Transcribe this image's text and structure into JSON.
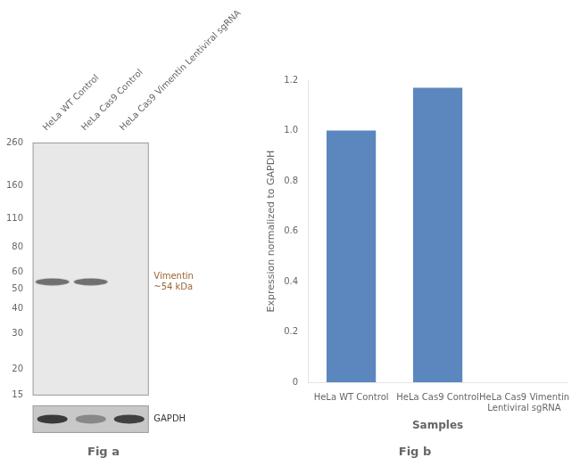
{
  "chart_data": [
    {
      "type": "blot",
      "title": "Fig a",
      "categories": [
        "HeLa WT Control",
        "HeLa Cas9 Control",
        "HeLa Cas9 Vimentin Lentiviral sgRNA"
      ],
      "series": [
        {
          "values": [
            54,
            54,
            null
          ],
          "color": "#707070"
        }
      ],
      "ylim": [
        15,
        260
      ],
      "yticks": [
        260,
        160,
        110,
        80,
        60,
        50,
        40,
        30,
        20,
        15
      ],
      "log": "y",
      "grid": false,
      "annotations": [
        {
          "text": "Vimentin\n~54 kDa",
          "value": 54,
          "color": "#996633"
        },
        {
          "text": "GAPDH"
        }
      ]
    },
    {
      "type": "bar",
      "title": "Fig b",
      "categories": [
        "HeLa WT Control",
        "HeLa Cas9 Control",
        "HeLa Cas9 Vimentin\nLentiviral sgRNA"
      ],
      "values": [
        1.0,
        1.17,
        0.0
      ],
      "color": "#5b87be",
      "xlabel": "Samples",
      "ylabel": "Expression normalized to GAPDH",
      "ylim": [
        0,
        1.2
      ],
      "yticks": [
        0,
        0.2,
        0.4,
        0.6,
        0.8,
        {
          "value": 1.0,
          "label": "1.0"
        },
        1.2
      ],
      "grid": false
    }
  ]
}
